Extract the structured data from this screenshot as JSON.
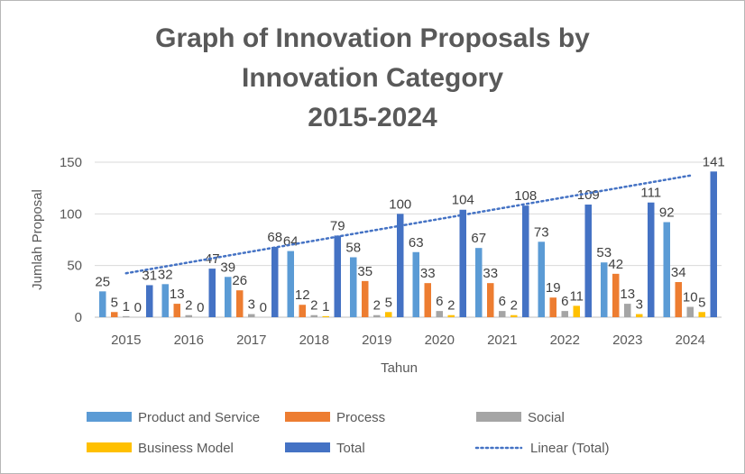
{
  "chart_data": {
    "type": "bar",
    "title_lines": [
      "Graph of Innovation Proposals by",
      "Innovation Category",
      "2015-2024"
    ],
    "xlabel": "Tahun",
    "ylabel": "Jumlah Proposal",
    "ylim": [
      0,
      150
    ],
    "yticks": [
      0,
      50,
      100,
      150
    ],
    "grid": true,
    "legend_position": "bottom",
    "categories": [
      "2015",
      "2016",
      "2017",
      "2018",
      "2019",
      "2020",
      "2021",
      "2022",
      "2023",
      "2024"
    ],
    "series": [
      {
        "name": "Product and Service",
        "color": "#5b9bd5",
        "values": [
          25,
          32,
          39,
          64,
          58,
          63,
          67,
          73,
          53,
          92
        ]
      },
      {
        "name": "Process",
        "color": "#ed7d31",
        "values": [
          5,
          13,
          26,
          12,
          35,
          33,
          33,
          19,
          42,
          34
        ]
      },
      {
        "name": "Social",
        "color": "#a5a5a5",
        "values": [
          1,
          2,
          3,
          2,
          2,
          6,
          6,
          6,
          13,
          10
        ]
      },
      {
        "name": "Business Model",
        "color": "#ffc000",
        "values": [
          0,
          0,
          0,
          1,
          5,
          2,
          2,
          11,
          3,
          5
        ]
      },
      {
        "name": "Total",
        "color": "#4472c4",
        "values": [
          31,
          47,
          68,
          79,
          100,
          104,
          108,
          109,
          111,
          141
        ]
      }
    ],
    "trendline": {
      "name": "Linear (Total)",
      "color": "#4472c4",
      "style": "dotted"
    }
  }
}
